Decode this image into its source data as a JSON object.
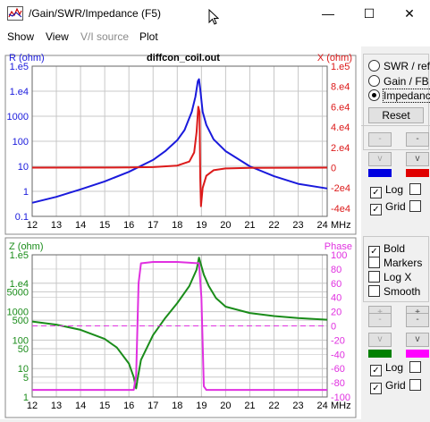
{
  "window": {
    "title": "/Gain/SWR/Impedance (F5)",
    "minimize_glyph": "—",
    "maximize_glyph": "☐",
    "close_glyph": "✕"
  },
  "menu": {
    "items": [
      {
        "label": "Show",
        "enabled": true
      },
      {
        "label": "View",
        "enabled": true
      },
      {
        "label": "V/I source",
        "enabled": false
      },
      {
        "label": "Plot",
        "enabled": true
      }
    ]
  },
  "colors": {
    "r_curve": "#1a1adc",
    "x_curve": "#dc1a1a",
    "z_curve": "#1a8c1a",
    "phase_curve": "#e030e0",
    "grid": "#c8c8c8"
  },
  "panel": {
    "mode_options": [
      "SWR / ref",
      "Gain / FB",
      "Impedance"
    ],
    "selected_mode": "Impedance",
    "reset_label": "Reset",
    "top": {
      "log_label": "Log",
      "log_checked": true,
      "grid_label": "Grid",
      "grid_checked": true,
      "right_log_checked": false,
      "right_grid_checked": false
    },
    "options": [
      {
        "label": "Bold",
        "checked": true
      },
      {
        "label": "Markers",
        "checked": false
      },
      {
        "label": "Log X",
        "checked": false
      },
      {
        "label": "Smooth",
        "checked": false
      }
    ],
    "bottom": {
      "log_label": "Log",
      "log_checked": true,
      "grid_label": "Grid",
      "grid_checked": true,
      "right_log_checked": false,
      "right_grid_checked": false
    },
    "btn_minus": "-",
    "btn_v": "v",
    "btn_plus": "+"
  },
  "chart_data": [
    {
      "type": "line",
      "title": "diffcon_coil.out",
      "ylabel": "R (ohm)",
      "y2label": "X (ohm)",
      "xlabel": "MHz",
      "x_ticks": [
        "12",
        "13",
        "14",
        "15",
        "16",
        "17",
        "18",
        "19",
        "20",
        "21",
        "22",
        "23",
        "24"
      ],
      "xlim": [
        12,
        24.2
      ],
      "y_ticks": [
        "1.e5",
        "1.e4",
        "1000",
        "100",
        "10",
        "1",
        "0.1"
      ],
      "y_scale": "log",
      "ylim": [
        0.1,
        100000
      ],
      "y2_ticks": [
        "1.e5",
        "8.e4",
        "6.e4",
        "4.e4",
        "2.e4",
        "0",
        "-2e4",
        "-4e4"
      ],
      "y2lim": [
        -48000,
        100000
      ],
      "grid": true,
      "series": [
        {
          "name": "R (ohm)",
          "axis": "left",
          "x": [
            12,
            13,
            14,
            15,
            16,
            17,
            17.5,
            18,
            18.3,
            18.6,
            18.75,
            18.85,
            18.9,
            18.95,
            19.05,
            19.2,
            19.5,
            20,
            21,
            22,
            23,
            24.2
          ],
          "y": [
            0.35,
            0.6,
            1.2,
            2.5,
            6,
            18,
            40,
            110,
            280,
            1500,
            6000,
            25000,
            30000,
            12000,
            1500,
            450,
            120,
            40,
            10,
            4,
            2,
            1.3
          ]
        },
        {
          "name": "X (ohm)",
          "axis": "right",
          "x": [
            12,
            16,
            17,
            18,
            18.5,
            18.7,
            18.8,
            18.87,
            18.92,
            18.95,
            18.98,
            19.05,
            19.2,
            19.5,
            20,
            21,
            24.2
          ],
          "y": [
            0,
            200,
            500,
            2000,
            6000,
            15000,
            35000,
            60000,
            55000,
            -10000,
            -38000,
            -20000,
            -8000,
            -2500,
            -800,
            -200,
            0
          ]
        }
      ]
    },
    {
      "type": "line",
      "ylabel": "Z (ohm)",
      "y2label": "Phase",
      "xlabel": "MHz",
      "x_ticks": [
        "12",
        "13",
        "14",
        "15",
        "16",
        "17",
        "18",
        "19",
        "20",
        "21",
        "22",
        "23",
        "24"
      ],
      "xlim": [
        12,
        24.2
      ],
      "y_ticks": [
        "1.e5",
        "1.e4",
        "5000",
        "1000",
        "500",
        "100",
        "50",
        "10",
        "5",
        "1"
      ],
      "y_scale": "log",
      "ylim": [
        1,
        100000
      ],
      "y2_ticks": [
        "100",
        "80",
        "60",
        "40",
        "20",
        "0",
        "-20",
        "-40",
        "-60",
        "-80",
        "-100"
      ],
      "y2lim": [
        -100,
        100
      ],
      "grid": true,
      "series": [
        {
          "name": "Z (ohm)",
          "axis": "left",
          "x": [
            12,
            13,
            14,
            15,
            15.5,
            16,
            16.2,
            16.3,
            16.35,
            16.5,
            17,
            17.5,
            18,
            18.5,
            18.8,
            18.9,
            19.0,
            19.1,
            19.3,
            19.6,
            20,
            21,
            22,
            23,
            24.2
          ],
          "y": [
            450,
            350,
            230,
            110,
            55,
            15,
            5,
            2,
            4,
            20,
            150,
            600,
            2000,
            8000,
            30000,
            80000,
            40000,
            20000,
            8000,
            3000,
            1500,
            900,
            700,
            600,
            520
          ]
        },
        {
          "name": "Phase",
          "axis": "right",
          "x": [
            12,
            16.2,
            16.3,
            16.4,
            16.5,
            17,
            18,
            18.9,
            19.0,
            19.1,
            19.2,
            24.2
          ],
          "y": [
            -90,
            -90,
            -70,
            60,
            88,
            90,
            90,
            88,
            40,
            -85,
            -90,
            -90
          ]
        },
        {
          "name": "Phase zero",
          "axis": "right",
          "style": "dashed",
          "x": [
            12,
            24.2
          ],
          "y": [
            0,
            0
          ]
        }
      ]
    }
  ]
}
